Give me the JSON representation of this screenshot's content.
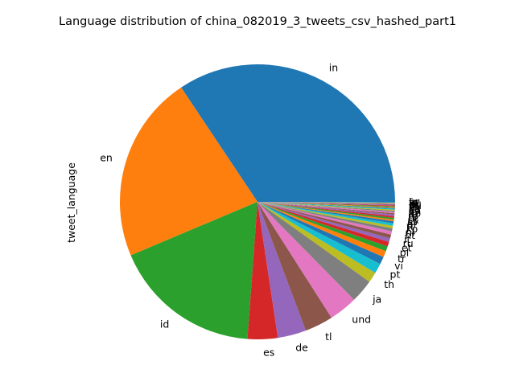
{
  "chart_data": {
    "type": "pie",
    "title": "Language distribution of china_082019_3_tweets_csv_hashed_part1",
    "ylabel": "tweet_language",
    "slices": [
      {
        "label": "in",
        "value": 35.0,
        "color": "#1f77b4"
      },
      {
        "label": "en",
        "value": 22.4,
        "color": "#ff7f0e"
      },
      {
        "label": "id",
        "value": 17.8,
        "color": "#2ca02c"
      },
      {
        "label": "es",
        "value": 3.6,
        "color": "#d62728"
      },
      {
        "label": "de",
        "value": 3.4,
        "color": "#9467bd"
      },
      {
        "label": "tl",
        "value": 3.4,
        "color": "#8c564b"
      },
      {
        "label": "und",
        "value": 3.4,
        "color": "#e377c2"
      },
      {
        "label": "ja",
        "value": 2.8,
        "color": "#7f7f7f"
      },
      {
        "label": "th",
        "value": 1.25,
        "color": "#bcbd22"
      },
      {
        "label": "pt",
        "value": 1.2,
        "color": "#17becf"
      },
      {
        "label": "vi",
        "value": 0.9,
        "color": "#1f77b4"
      },
      {
        "label": "tr",
        "value": 0.75,
        "color": "#ff7f0e"
      },
      {
        "label": "pl",
        "value": 0.6,
        "color": "#2ca02c"
      },
      {
        "label": "et",
        "value": 0.55,
        "color": "#d62728"
      },
      {
        "label": "ru",
        "value": 0.45,
        "color": "#9467bd"
      },
      {
        "label": "it",
        "value": 0.45,
        "color": "#8c564b"
      },
      {
        "label": "ht",
        "value": 0.4,
        "color": "#e377c2"
      },
      {
        "label": "nl",
        "value": 0.35,
        "color": "#7f7f7f"
      },
      {
        "label": "ko",
        "value": 0.3,
        "color": "#bcbd22"
      },
      {
        "label": "fr",
        "value": 0.3,
        "color": "#17becf"
      },
      {
        "label": "ar",
        "value": 0.25,
        "color": "#1f77b4"
      },
      {
        "label": "sv",
        "value": 0.2,
        "color": "#ff7f0e"
      },
      {
        "label": "sk",
        "value": 0.2,
        "color": "#2ca02c"
      },
      {
        "label": "hi",
        "value": 0.2,
        "color": "#d62728"
      },
      {
        "label": "ro",
        "value": 0.2,
        "color": "#9467bd"
      },
      {
        "label": "lt",
        "value": 0.15,
        "color": "#8c564b"
      },
      {
        "label": "no",
        "value": 0.15,
        "color": "#e377c2"
      },
      {
        "label": "cy",
        "value": 0.15,
        "color": "#7f7f7f"
      },
      {
        "label": "da",
        "value": 0.12,
        "color": "#bcbd22"
      },
      {
        "label": "ca",
        "value": 0.12,
        "color": "#17becf"
      },
      {
        "label": "sl",
        "value": 0.1,
        "color": "#1f77b4"
      },
      {
        "label": "zh",
        "value": 0.1,
        "color": "#ff7f0e"
      },
      {
        "label": "fi",
        "value": 0.1,
        "color": "#2ca02c"
      },
      {
        "label": "hu",
        "value": 0.08,
        "color": "#d62728"
      },
      {
        "label": "cs",
        "value": 0.08,
        "color": "#9467bd"
      },
      {
        "label": "lv",
        "value": 0.08,
        "color": "#8c564b"
      },
      {
        "label": "eu",
        "value": 0.06,
        "color": "#e377c2"
      },
      {
        "label": "is",
        "value": 0.06,
        "color": "#7f7f7f"
      },
      {
        "label": "fa",
        "value": 0.05,
        "color": "#bcbd22"
      },
      {
        "label": "iw",
        "value": 0.05,
        "color": "#17becf"
      },
      {
        "label": "ur",
        "value": 0.05,
        "color": "#1f77b4"
      }
    ]
  }
}
